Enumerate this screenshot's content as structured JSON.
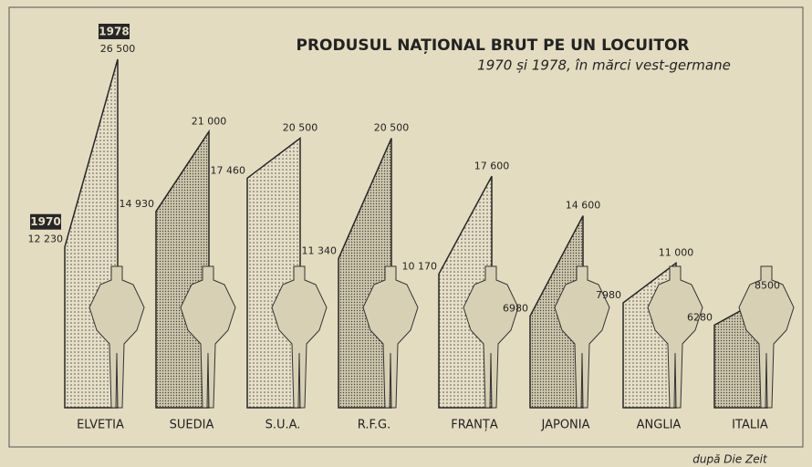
{
  "chart_data": {
    "type": "slope-bar",
    "title": "PRODUSUL NAȚIONAL BRUT PE UN LOCUITOR",
    "subtitle": "1970 și 1978, în mărci vest-germane",
    "source": "după Die Zeit",
    "categories": [
      "ELVETIA",
      "SUEDIA",
      "S.U.A.",
      "R.F.G.",
      "FRANȚA",
      "JAPONIA",
      "ANGLIA",
      "ITALIA"
    ],
    "series": [
      {
        "name": "1970",
        "color": "#262626",
        "values": [
          12230,
          14930,
          17460,
          11340,
          10170,
          6980,
          7980,
          6280
        ],
        "value_labels": [
          "12 230",
          "14 930",
          "17 460",
          "11 340",
          "10 170",
          "6980",
          "7980",
          "6280"
        ]
      },
      {
        "name": "1978",
        "color": "#262626",
        "values": [
          26500,
          21000,
          20500,
          20500,
          17600,
          14600,
          11000,
          8500
        ],
        "value_labels": [
          "26 500",
          "21 000",
          "20 500",
          "20 500",
          "17 600",
          "14 600",
          "11 000",
          "8500"
        ]
      }
    ]
  }
}
